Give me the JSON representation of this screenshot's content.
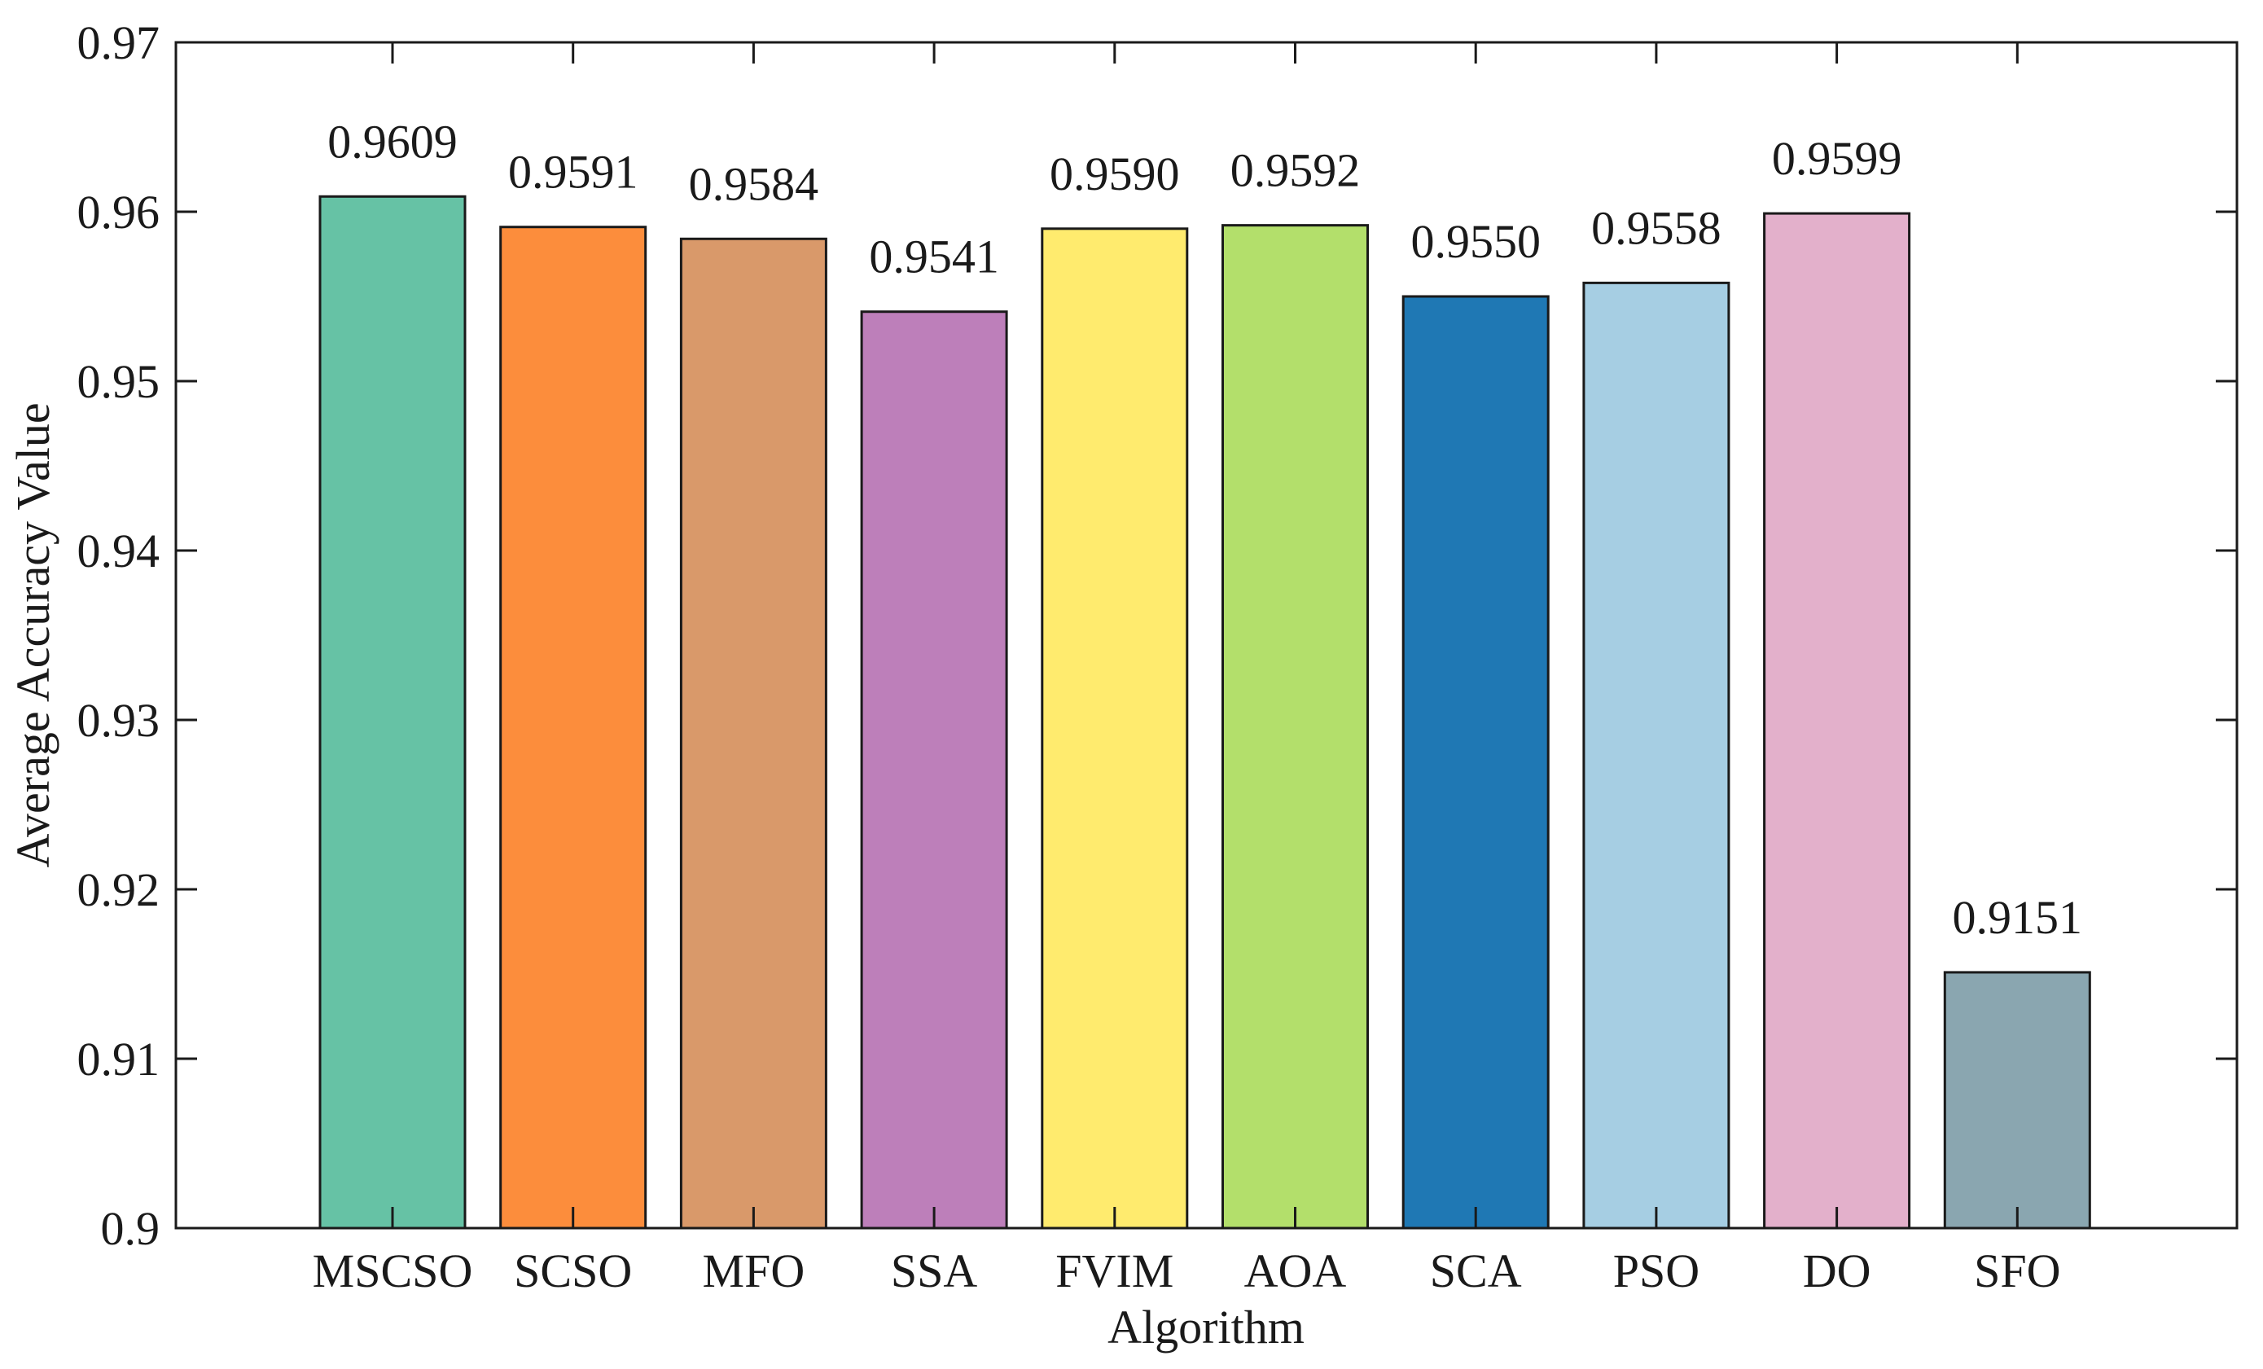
{
  "chart_data": {
    "type": "bar",
    "title": "",
    "xlabel": "Algorithm",
    "ylabel": "Average Accuracy Value",
    "ylim": [
      0.9,
      0.97
    ],
    "yticks": [
      0.9,
      0.91,
      0.92,
      0.93,
      0.94,
      0.95,
      0.96,
      0.97
    ],
    "ytick_labels": [
      "0.9",
      "0.91",
      "0.92",
      "0.93",
      "0.94",
      "0.95",
      "0.96",
      "0.97"
    ],
    "grid": false,
    "categories": [
      "MSCSO",
      "SCSO",
      "MFO",
      "SSA",
      "FVIM",
      "AOA",
      "SCA",
      "PSO",
      "DO",
      "SFO"
    ],
    "values": [
      0.9609,
      0.9591,
      0.9584,
      0.9541,
      0.959,
      0.9592,
      0.955,
      0.9558,
      0.9599,
      0.9151
    ],
    "value_labels": [
      "0.9609",
      "0.9591",
      "0.9584",
      "0.9541",
      "0.9590",
      "0.9592",
      "0.9550",
      "0.9558",
      "0.9599",
      "0.9151"
    ],
    "colors": [
      "#66c2a5",
      "#fc8d3c",
      "#d9996a",
      "#bd7fba",
      "#ffeb6e",
      "#b3df6b",
      "#1f78b4",
      "#a6cee3",
      "#e3b0cb",
      "#8aa6b0"
    ]
  }
}
